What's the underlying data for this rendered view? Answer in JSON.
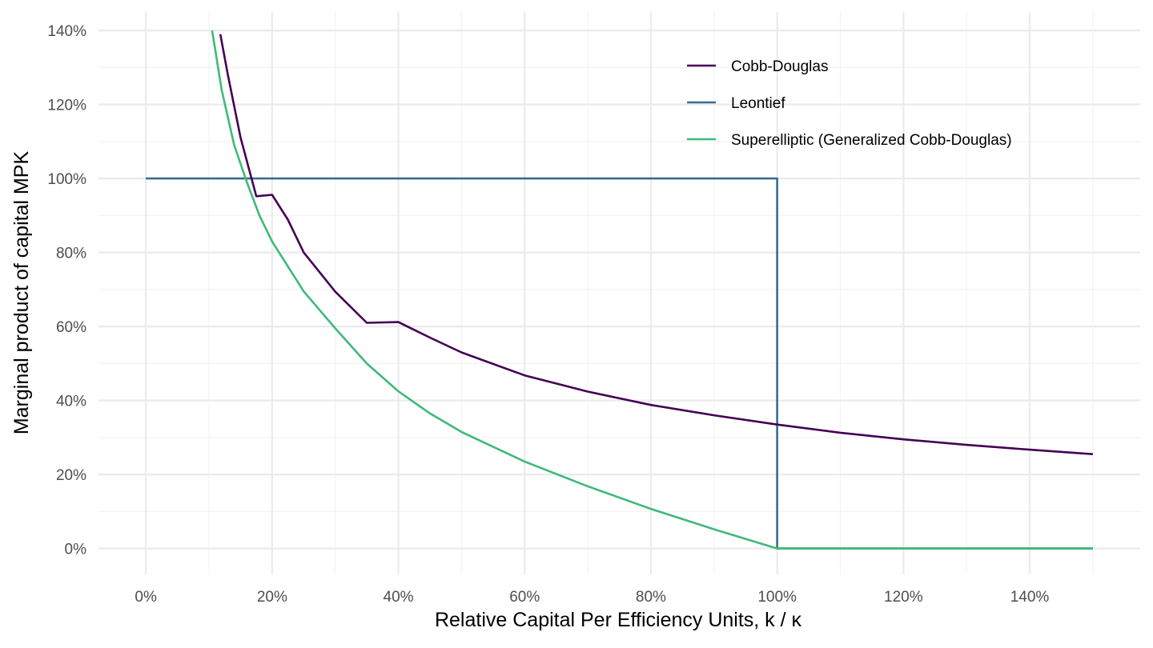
{
  "chart_data": {
    "type": "line",
    "xlabel": "Relative Capital Per Efficiency Units, k / κ",
    "ylabel": "Marginal product of capital MPK",
    "xlim": [
      -0.075,
      1.575
    ],
    "ylim": [
      -0.07,
      1.45
    ],
    "x_ticks": [
      0,
      0.2,
      0.4,
      0.6,
      0.8,
      1.0,
      1.2,
      1.4
    ],
    "x_tick_labels": [
      "0%",
      "20%",
      "40%",
      "60%",
      "80%",
      "100%",
      "120%",
      "140%"
    ],
    "y_ticks": [
      0,
      0.2,
      0.4,
      0.6,
      0.8,
      1.0,
      1.2,
      1.4
    ],
    "y_tick_labels": [
      "0%",
      "20%",
      "40%",
      "60%",
      "80%",
      "100%",
      "120%",
      "140%"
    ],
    "grid": true,
    "legend_position": "top-right",
    "series": [
      {
        "name": "Cobb-Douglas",
        "color": "#440154",
        "x": [
          0.118,
          0.13,
          0.15,
          0.175,
          0.2,
          0.225,
          0.25,
          0.3,
          0.35,
          0.4,
          0.45,
          0.5,
          0.6,
          0.7,
          0.8,
          0.9,
          1.0,
          1.1,
          1.2,
          1.3,
          1.4,
          1.5
        ],
        "y": [
          1.39,
          1.28,
          1.111,
          0.952,
          0.956,
          0.889,
          0.8,
          0.694,
          0.61,
          0.612,
          0.57,
          0.53,
          0.468,
          0.424,
          0.388,
          0.36,
          0.335,
          0.313,
          0.295,
          0.28,
          0.267,
          0.255
        ]
      },
      {
        "name": "Leontief",
        "color": "#3b6b8f",
        "x": [
          0,
          1.0,
          1.0,
          1.5
        ],
        "y": [
          1.0,
          1.0,
          0,
          0
        ]
      },
      {
        "name": "Superelliptic (Generalized Cobb-Douglas)",
        "color": "#3fb97a",
        "x": [
          0.105,
          0.12,
          0.14,
          0.16,
          0.18,
          0.2,
          0.25,
          0.3,
          0.35,
          0.4,
          0.45,
          0.5,
          0.6,
          0.7,
          0.8,
          0.9,
          1.0,
          1.1,
          1.2,
          1.3,
          1.4,
          1.5
        ],
        "y": [
          1.4,
          1.24,
          1.09,
          0.99,
          0.9,
          0.83,
          0.695,
          0.595,
          0.5,
          0.425,
          0.365,
          0.315,
          0.235,
          0.168,
          0.107,
          0.052,
          0,
          0,
          0,
          0,
          0,
          0
        ]
      }
    ]
  }
}
